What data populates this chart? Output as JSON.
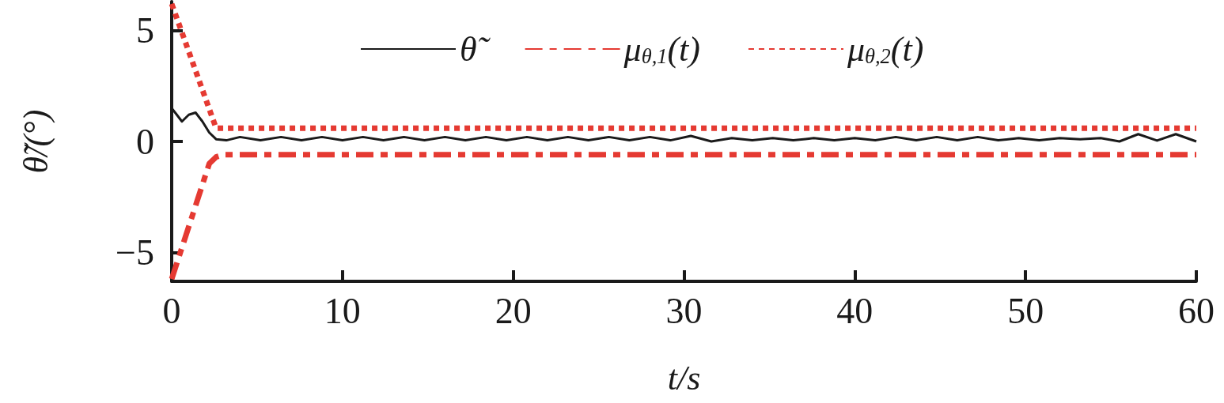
{
  "chart_data": {
    "type": "line",
    "xlabel": "t/s",
    "ylabel": "θ̃/(°)",
    "xlim": [
      0,
      60
    ],
    "xticks": [
      0,
      10,
      20,
      30,
      40,
      50,
      60
    ],
    "ylim": [
      -6.3,
      6.3
    ],
    "yticks": [
      -5,
      0,
      5
    ],
    "grid": false,
    "legend": "top",
    "marker": "none",
    "series": [
      {
        "name": "θ̃",
        "color": "#1a1a1a",
        "line_style": "solid",
        "x": [
          0,
          0.3,
          0.6,
          1.0,
          1.4,
          1.8,
          2.2,
          2.6,
          3.2,
          4.0,
          5.2,
          6.4,
          7.6,
          8.8,
          10.0,
          11.2,
          12.4,
          13.6,
          14.8,
          16,
          17.2,
          18.4,
          19.6,
          20.8,
          22,
          23.2,
          24.4,
          25.6,
          26.8,
          28,
          29.2,
          30.4,
          31.6,
          32.8,
          34,
          35.2,
          36.4,
          37.6,
          38.8,
          40,
          41.2,
          42.4,
          43.6,
          44.8,
          46,
          47.2,
          48.4,
          49.6,
          50.8,
          52,
          53.2,
          54.4,
          55.5,
          56.6,
          57.7,
          58.8,
          60
        ],
        "values": [
          1.5,
          1.2,
          0.9,
          1.2,
          1.3,
          0.9,
          0.4,
          0.1,
          0.05,
          0.2,
          0.05,
          0.2,
          0.05,
          0.2,
          0.05,
          0.2,
          0.05,
          0.2,
          0.05,
          0.2,
          0.05,
          0.2,
          0.05,
          0.2,
          0.05,
          0.2,
          0.05,
          0.2,
          0.05,
          0.2,
          0.05,
          0.25,
          0.0,
          0.15,
          0.05,
          0.15,
          0.05,
          0.15,
          0.05,
          0.15,
          0.05,
          0.2,
          0.05,
          0.2,
          0.05,
          0.2,
          0.05,
          0.15,
          0.05,
          0.15,
          0.1,
          0.15,
          0.0,
          0.33,
          0.04,
          0.33,
          0.0
        ]
      },
      {
        "name": "μ$_{θ,1}$(t)",
        "color": "#e53a32",
        "line_style": "dashed",
        "x": [
          0,
          2.2,
          2.6,
          3.0,
          60
        ],
        "values": [
          -6.2,
          -1.0,
          -0.7,
          -0.6,
          -0.6
        ]
      },
      {
        "name": "μ$_{θ,2}$(t)",
        "color": "#e53a32",
        "line_style": "dotted",
        "x": [
          0,
          2.6,
          60
        ],
        "values": [
          6.2,
          0.6,
          0.6
        ]
      }
    ]
  }
}
